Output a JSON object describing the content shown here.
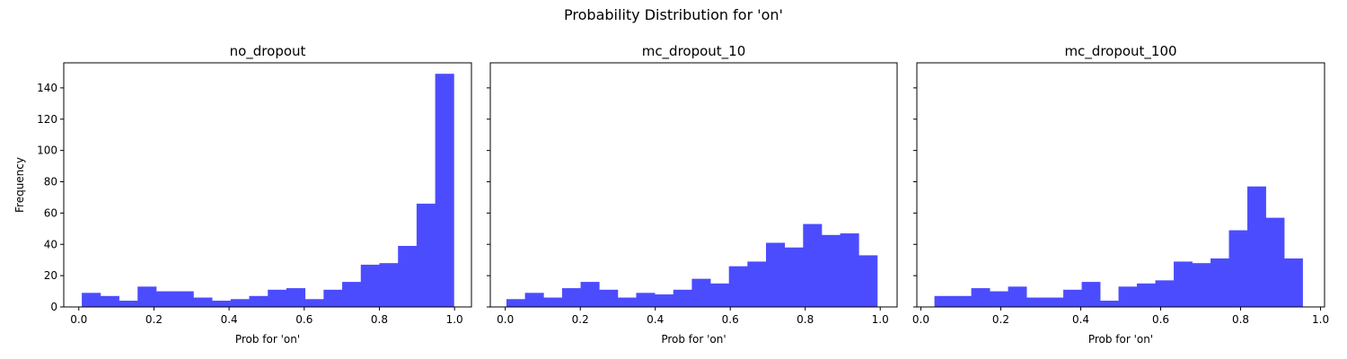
{
  "figure": {
    "title": "Probability Distribution for 'on'"
  },
  "colors": {
    "bar": "#4c4cff",
    "axis": "#000000"
  },
  "chart_data": [
    {
      "type": "bar",
      "title": "no_dropout",
      "xlabel": "Prob for 'on'",
      "ylabel": "Frequency",
      "xlim": [
        -0.04,
        1.045
      ],
      "ylim": [
        0,
        156
      ],
      "xticks": [
        0.0,
        0.2,
        0.4,
        0.6,
        0.8,
        1.0
      ],
      "xtick_labels": [
        "0.0",
        "0.2",
        "0.4",
        "0.6",
        "0.8",
        "1.0"
      ],
      "yticks": [
        0,
        20,
        40,
        60,
        80,
        100,
        120,
        140
      ],
      "ytick_labels": [
        "0",
        "20",
        "40",
        "60",
        "80",
        "100",
        "120",
        "140"
      ],
      "bin_start": 0.008,
      "bin_end": 0.998,
      "values": [
        9,
        7,
        4,
        13,
        10,
        10,
        6,
        4,
        5,
        7,
        11,
        12,
        5,
        11,
        16,
        27,
        28,
        39,
        66,
        149
      ]
    },
    {
      "type": "bar",
      "title": "mc_dropout_10",
      "xlabel": "Prob for 'on'",
      "ylabel": "",
      "xlim": [
        -0.04,
        1.045
      ],
      "ylim": [
        0,
        156
      ],
      "xticks": [
        0.0,
        0.2,
        0.4,
        0.6,
        0.8,
        1.0
      ],
      "xtick_labels": [
        "0.0",
        "0.2",
        "0.4",
        "0.6",
        "0.8",
        "1.0"
      ],
      "yticks": [
        0,
        20,
        40,
        60,
        80,
        100,
        120,
        140
      ],
      "ytick_labels": [],
      "bin_start": 0.003,
      "bin_end": 0.992,
      "values": [
        5,
        9,
        6,
        12,
        16,
        11,
        6,
        9,
        8,
        11,
        18,
        15,
        26,
        29,
        41,
        38,
        53,
        46,
        47,
        33
      ]
    },
    {
      "type": "bar",
      "title": "mc_dropout_100",
      "xlabel": "Prob for 'on'",
      "ylabel": "",
      "xlim": [
        -0.01,
        1.01
      ],
      "ylim": [
        0,
        156
      ],
      "xticks": [
        0.0,
        0.2,
        0.4,
        0.6,
        0.8,
        1.0
      ],
      "xtick_labels": [
        "0.0",
        "0.2",
        "0.4",
        "0.6",
        "0.8",
        "1.0"
      ],
      "yticks": [
        0,
        20,
        40,
        60,
        80,
        100,
        120,
        140
      ],
      "ytick_labels": [],
      "bin_start": 0.034,
      "bin_end": 0.955,
      "values": [
        7,
        7,
        12,
        10,
        13,
        6,
        6,
        11,
        16,
        4,
        13,
        15,
        17,
        29,
        28,
        31,
        49,
        77,
        57,
        31
      ]
    }
  ]
}
